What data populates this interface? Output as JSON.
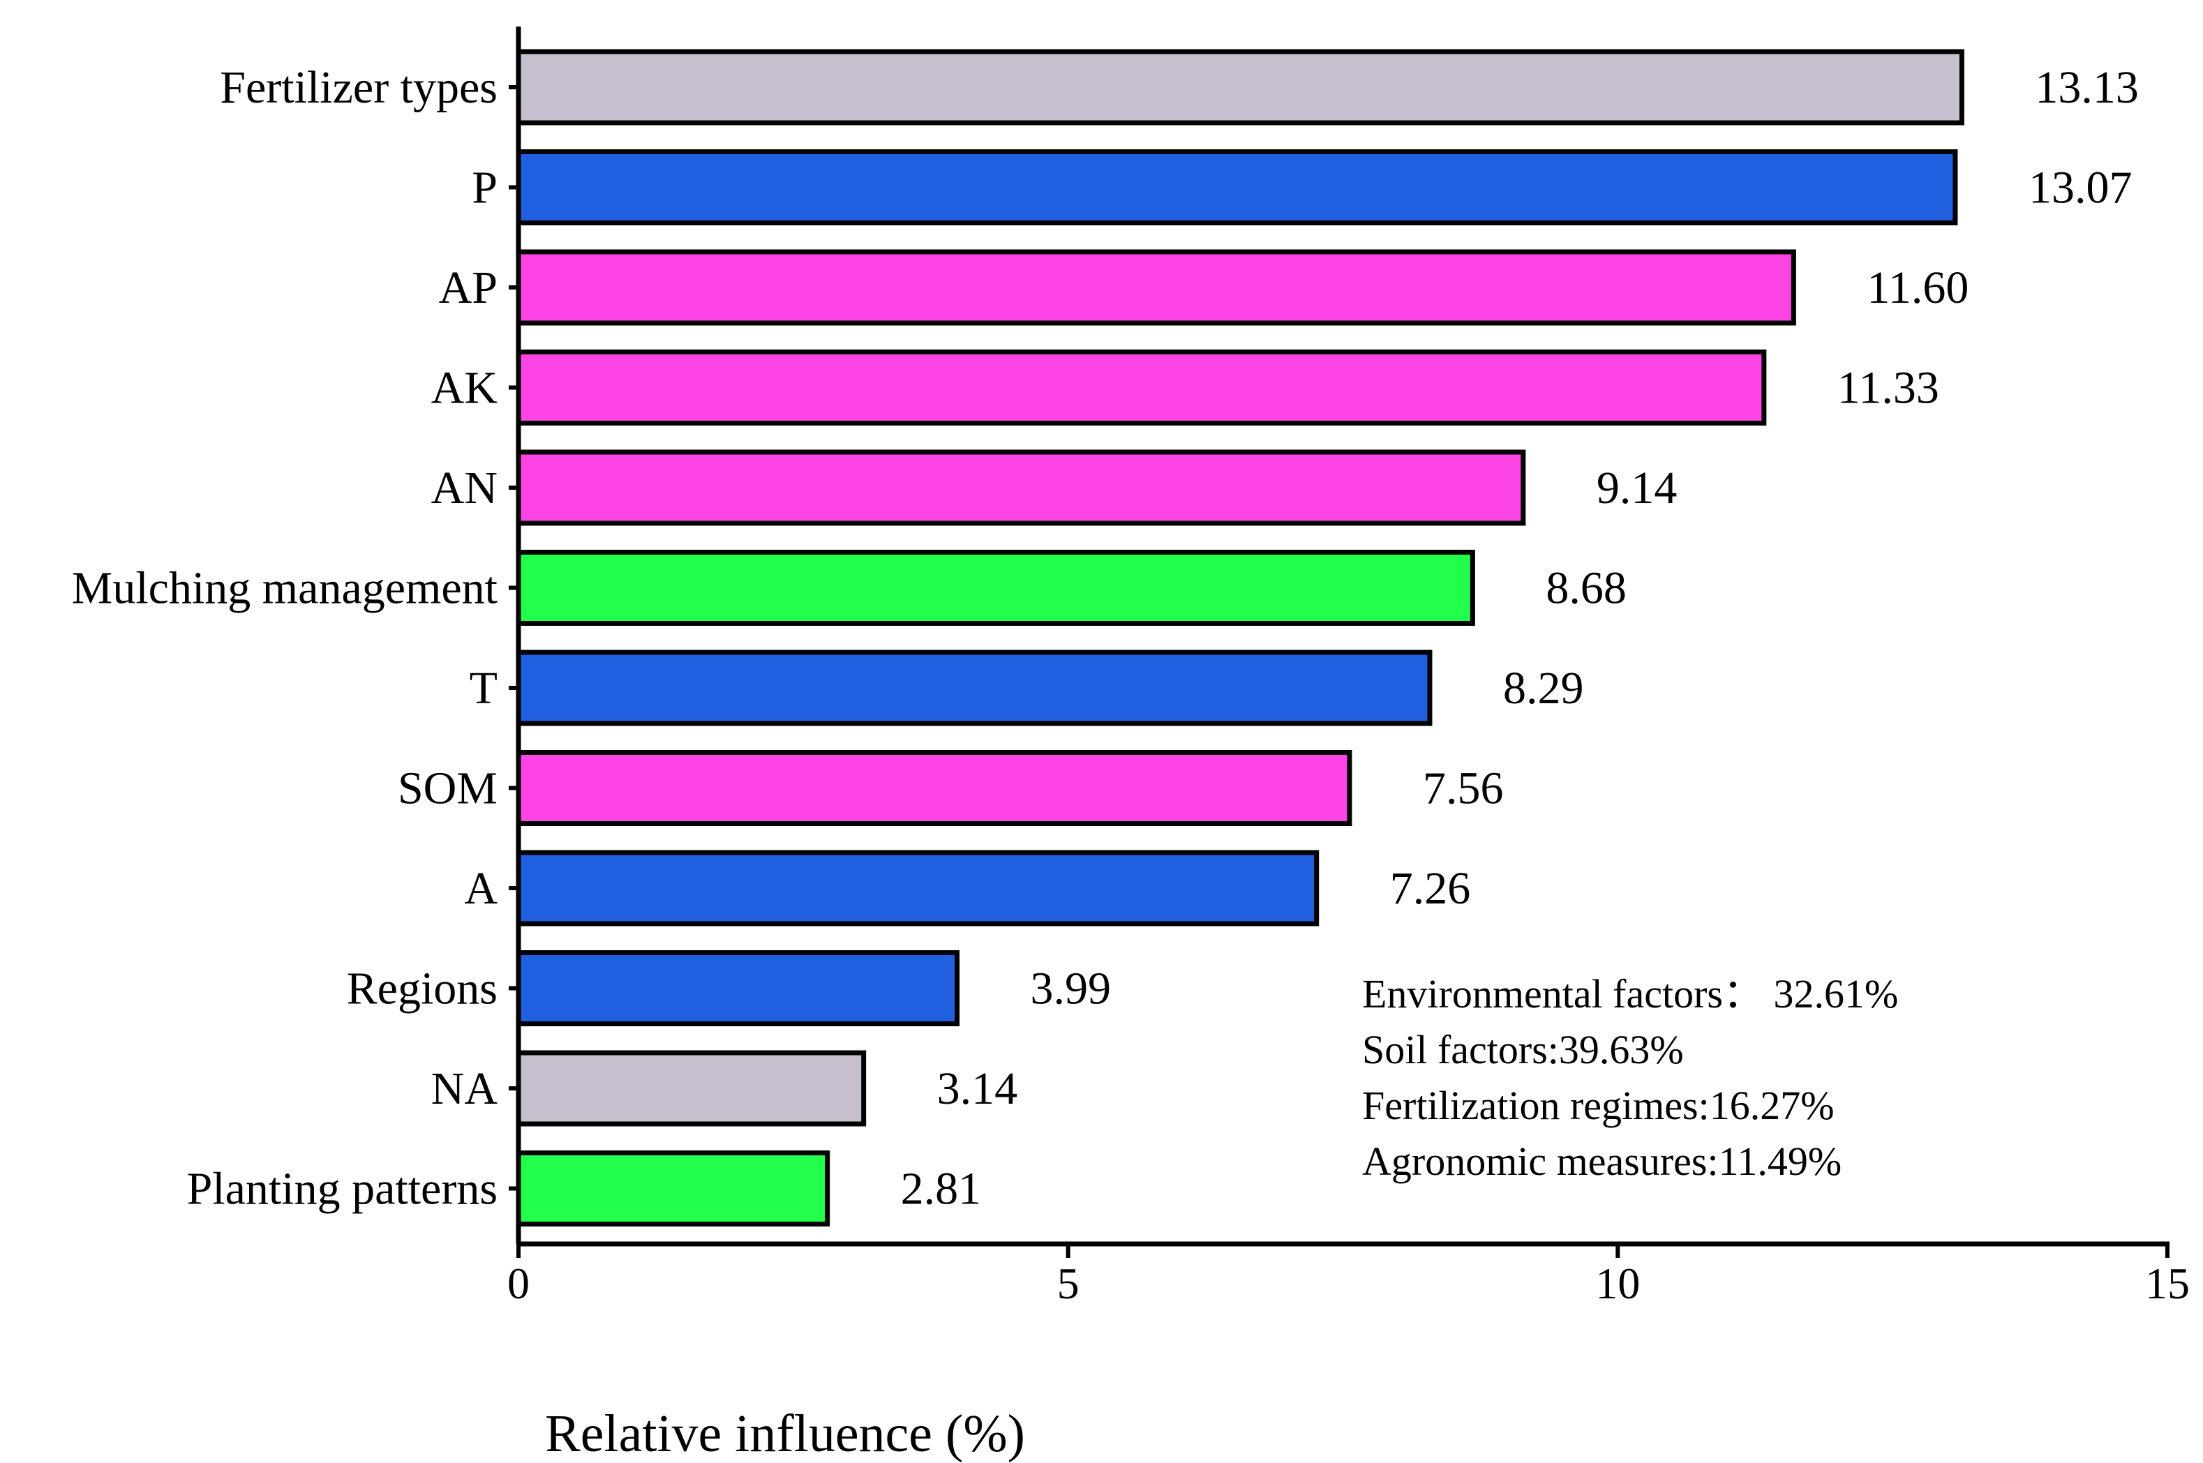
{
  "chart_data": {
    "type": "bar",
    "orientation": "horizontal",
    "categories": [
      "Fertilizer types",
      "P",
      "AP",
      "AK",
      "AN",
      "Mulching management",
      "T",
      "SOM",
      "A",
      "Regions",
      "NA",
      "Planting patterns"
    ],
    "values": [
      13.13,
      13.07,
      11.6,
      11.33,
      9.14,
      8.68,
      8.29,
      7.56,
      7.26,
      3.99,
      3.14,
      2.81
    ],
    "value_labels": [
      "13.13",
      "13.07",
      "11.60",
      "11.33",
      "9.14",
      "8.68",
      "8.29",
      "7.56",
      "7.26",
      "3.99",
      "3.14",
      "2.81"
    ],
    "groups": [
      "fertilization",
      "environmental",
      "soil",
      "soil",
      "soil",
      "agronomic",
      "environmental",
      "soil",
      "environmental",
      "environmental",
      "fertilization",
      "agronomic"
    ],
    "group_colors": {
      "environmental": "#1f5fe0",
      "soil": "#ff44e6",
      "fertilization": "#c8bfcf",
      "agronomic": "#22ff4a"
    },
    "xlabel": "Relative influence (%)",
    "ylabel": "",
    "xlim": [
      0,
      15
    ],
    "xticks": [
      0,
      5,
      10,
      15
    ],
    "xtick_labels": [
      "0",
      "5",
      "10",
      "15"
    ],
    "grid": false,
    "annotation_lines": [
      "Environmental factors： 32.61%",
      "Soil factors:39.63%",
      "Fertilization regimes:16.27%",
      "Agronomic measures:11.49%"
    ]
  }
}
